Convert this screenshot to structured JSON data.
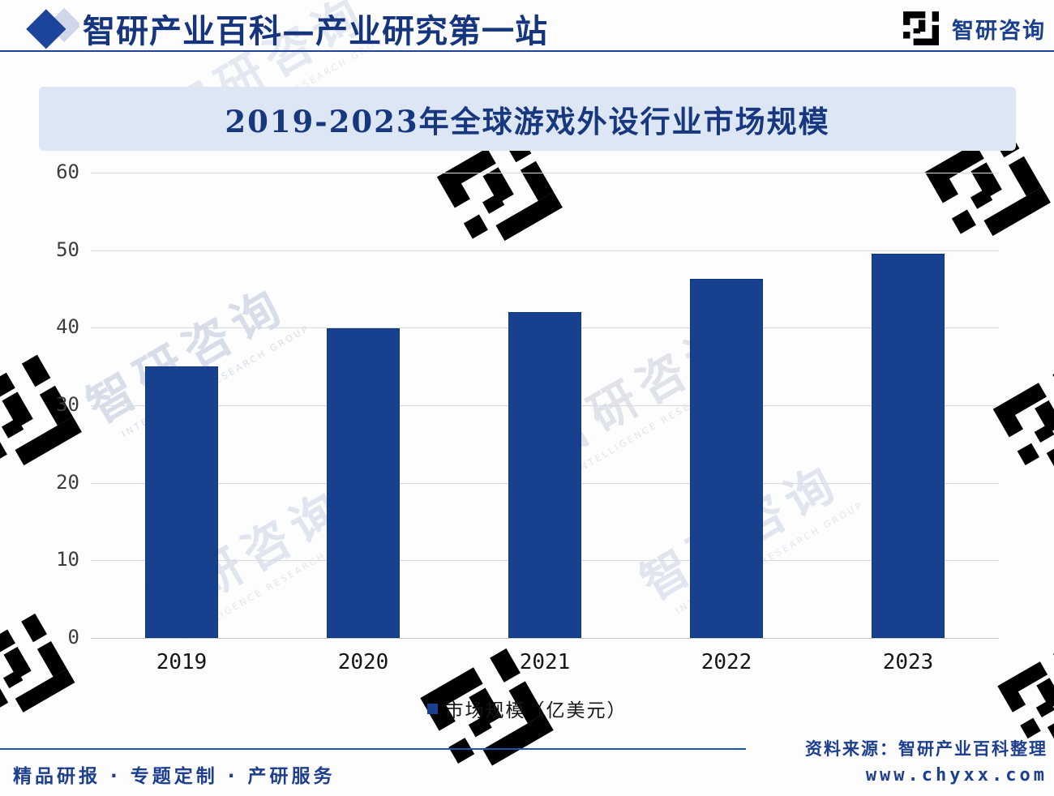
{
  "header": {
    "brand_title": "智研产业百科—产业研究第一站",
    "logo_text": "智研咨询"
  },
  "banner": {
    "title": "2019-2023年全球游戏外设行业市场规模"
  },
  "chart_data": {
    "type": "bar",
    "title": "2019-2023年全球游戏外设行业市场规模",
    "categories": [
      "2019",
      "2020",
      "2021",
      "2022",
      "2023"
    ],
    "series": [
      {
        "name": "市场规模（亿美元）",
        "values": [
          35,
          39.9,
          42,
          46.3,
          49.5
        ]
      }
    ],
    "xlabel": "",
    "ylabel": "",
    "ylim": [
      0,
      60
    ],
    "yticks": [
      0,
      10,
      20,
      30,
      40,
      50,
      60
    ],
    "grid": true,
    "legend_position": "bottom",
    "bar_color": "#17408f"
  },
  "legend": {
    "label": "市场规模（亿美元）"
  },
  "footer": {
    "left_text": "精品研报 · 专题定制 · 产研服务",
    "source": "资料来源：智研产业百科整理",
    "website": "www.chyxx.com"
  },
  "watermark": {
    "text": "智研咨询",
    "caption": "INTELLIGENCE RESEARCH GROUP"
  },
  "colors": {
    "accent_navy": "#1e3f8f",
    "bar_fill": "#17408f",
    "banner_bg": "#dce6f4",
    "gridline": "#d9dade"
  }
}
